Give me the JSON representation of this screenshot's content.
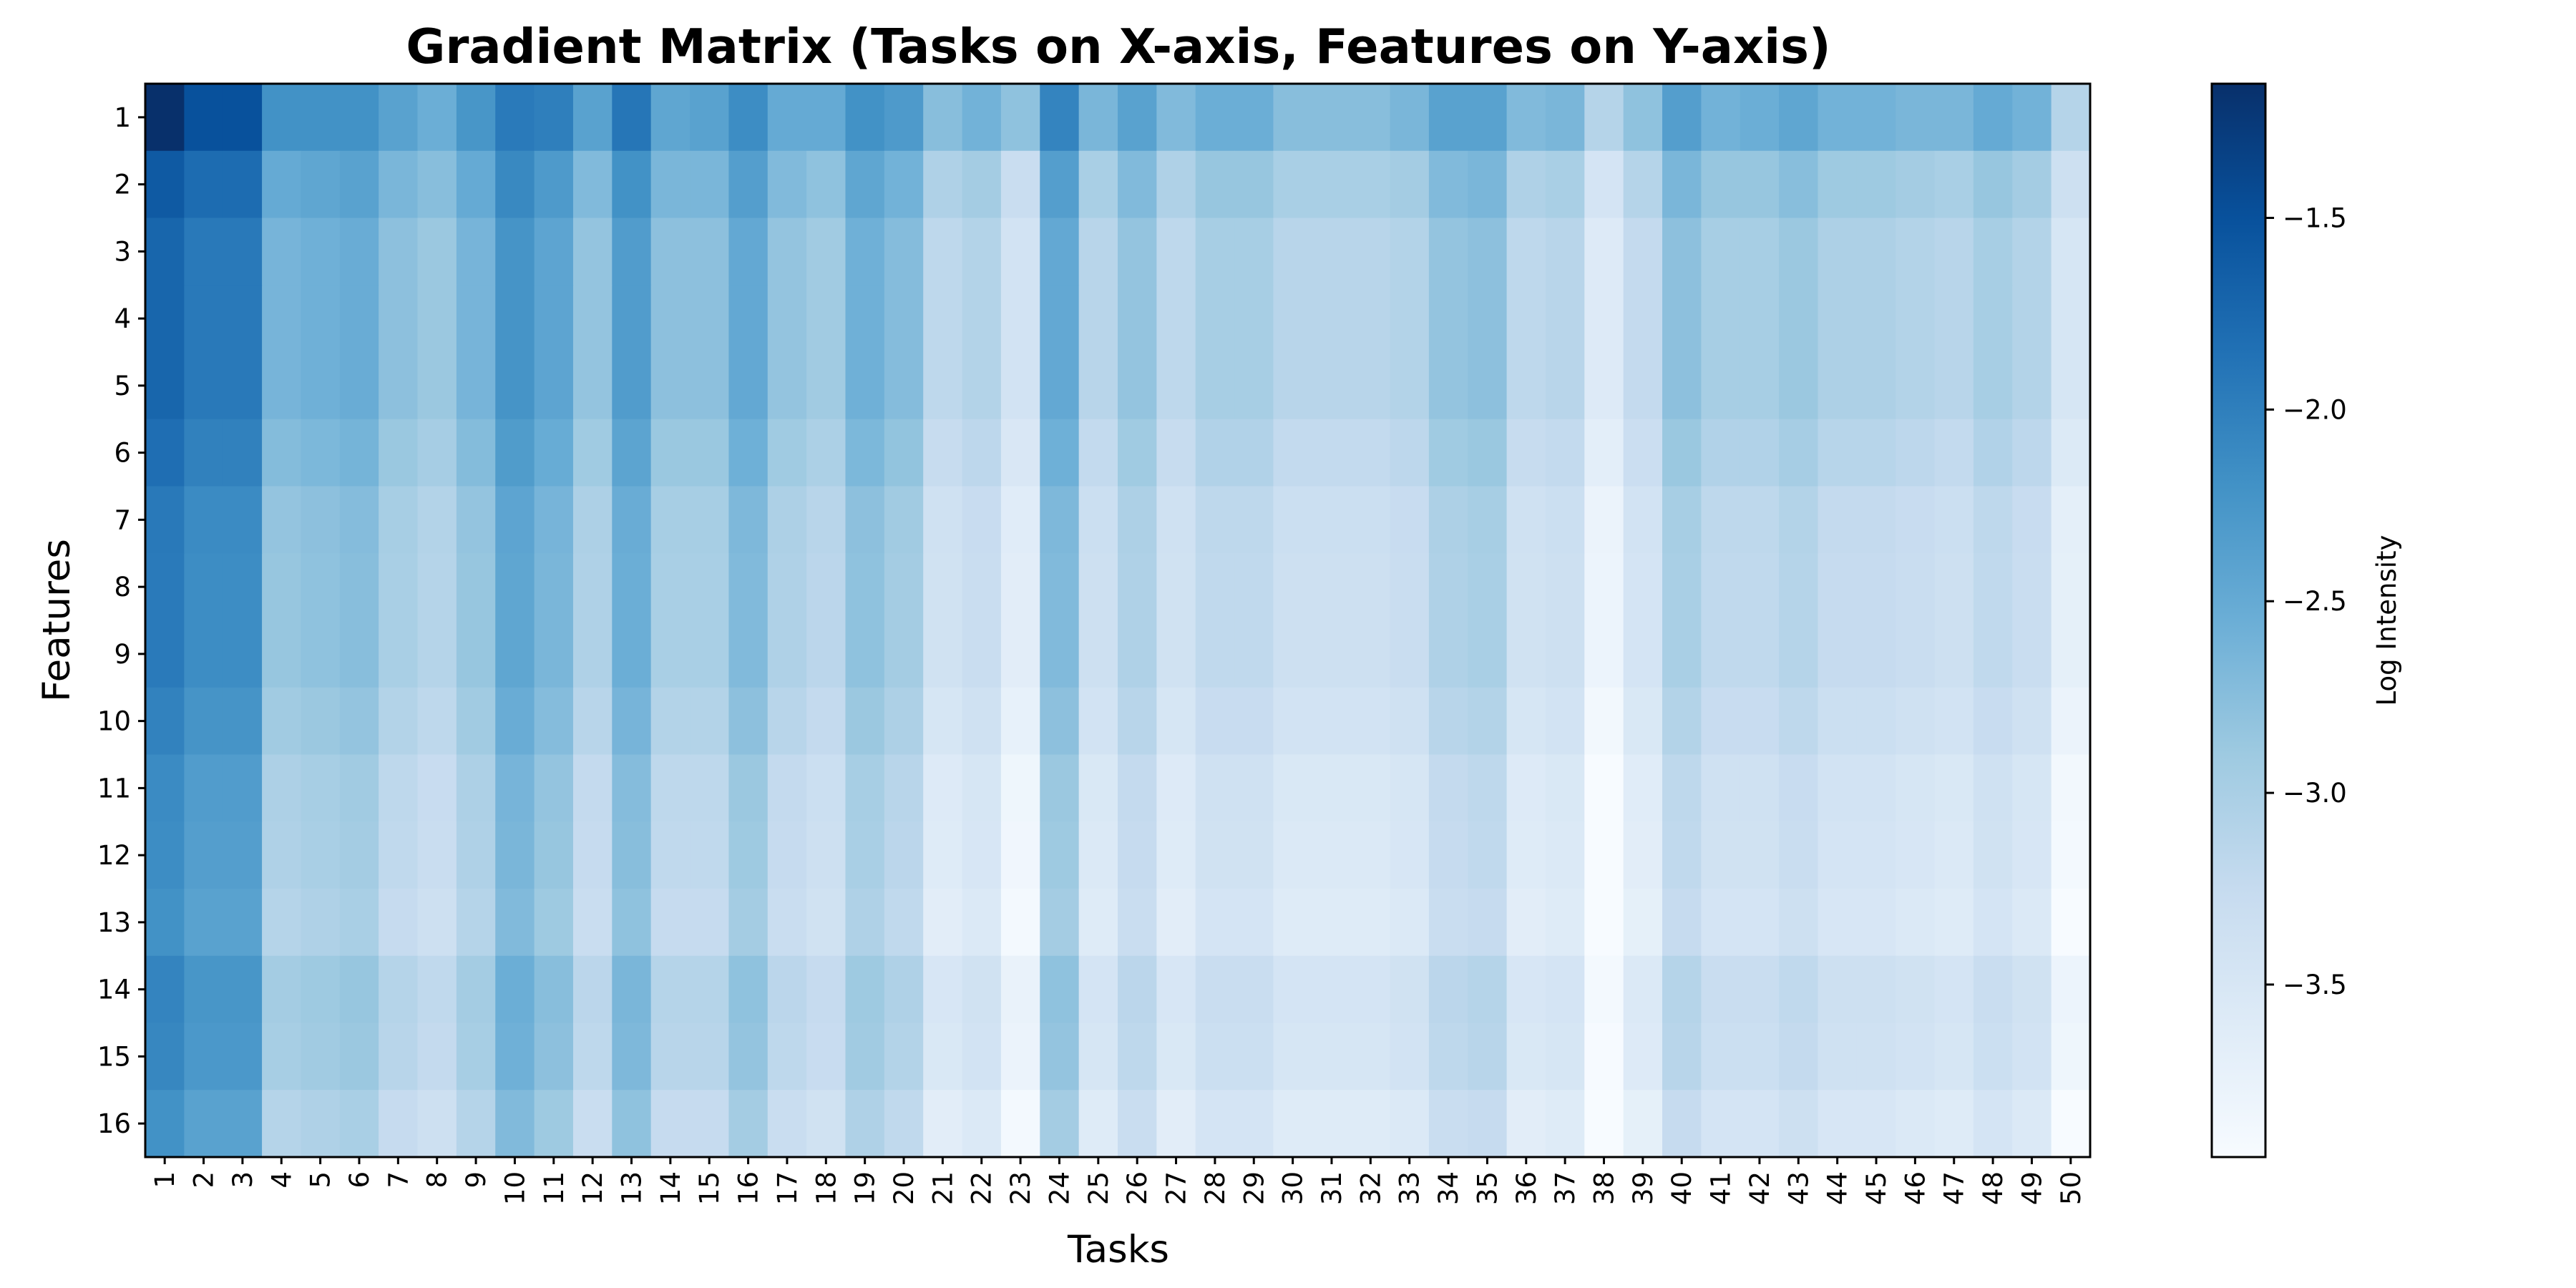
{
  "chart_data": {
    "type": "heatmap",
    "title": "Gradient Matrix (Tasks on X-axis, Features on Y-axis)",
    "xlabel": "Tasks",
    "ylabel": "Features",
    "x_categories": [
      "1",
      "2",
      "3",
      "4",
      "5",
      "6",
      "7",
      "8",
      "9",
      "10",
      "11",
      "12",
      "13",
      "14",
      "15",
      "16",
      "17",
      "18",
      "19",
      "20",
      "21",
      "22",
      "23",
      "24",
      "25",
      "26",
      "27",
      "28",
      "29",
      "30",
      "31",
      "32",
      "33",
      "34",
      "35",
      "36",
      "37",
      "38",
      "39",
      "40",
      "41",
      "42",
      "43",
      "44",
      "45",
      "46",
      "47",
      "48",
      "49",
      "50"
    ],
    "y_categories": [
      "1",
      "2",
      "3",
      "4",
      "5",
      "6",
      "7",
      "8",
      "9",
      "10",
      "11",
      "12",
      "13",
      "14",
      "15",
      "16"
    ],
    "colormap": "Blues",
    "colorbar": {
      "label": "Log Intensity",
      "range": [
        -3.95,
        -1.15
      ],
      "ticks": [
        -1.5,
        -2.0,
        -2.5,
        -3.0,
        -3.5
      ],
      "tick_labels": [
        "−1.5",
        "−2.0",
        "−2.5",
        "−3.0",
        "−3.5"
      ]
    },
    "column_base": [
      -1.6,
      -1.8,
      -1.8,
      -2.5,
      -2.45,
      -2.4,
      -2.65,
      -2.75,
      -2.5,
      -2.1,
      -2.3,
      -2.7,
      -2.2,
      -2.65,
      -2.65,
      -2.35,
      -2.7,
      -2.8,
      -2.45,
      -2.6,
      -3.05,
      -2.95,
      -3.3,
      -2.35,
      -3.0,
      -2.7,
      -3.05,
      -2.85,
      -2.85,
      -3.0,
      -3.0,
      -3.0,
      -2.95,
      -2.7,
      -2.65,
      -3.05,
      -3.0,
      -3.45,
      -3.1,
      -2.65,
      -2.85,
      -2.85,
      -2.75,
      -2.9,
      -2.9,
      -2.95,
      -3.0,
      -2.85,
      -2.95,
      -3.35
    ],
    "column_first_row": [
      -1.15,
      -1.5,
      -1.5,
      -2.2,
      -2.2,
      -2.2,
      -2.4,
      -2.55,
      -2.25,
      -1.95,
      -2.0,
      -2.4,
      -1.9,
      -2.45,
      -2.4,
      -2.15,
      -2.5,
      -2.5,
      -2.2,
      -2.3,
      -2.75,
      -2.6,
      -2.8,
      -2.05,
      -2.65,
      -2.4,
      -2.7,
      -2.55,
      -2.55,
      -2.75,
      -2.75,
      -2.75,
      -2.65,
      -2.4,
      -2.4,
      -2.7,
      -2.65,
      -3.1,
      -2.8,
      -2.35,
      -2.6,
      -2.55,
      -2.45,
      -2.6,
      -2.6,
      -2.65,
      -2.65,
      -2.5,
      -2.6,
      -3.1
    ],
    "row_offsets": [
      0,
      0,
      -0.13,
      -0.13,
      -0.13,
      -0.22,
      -0.33,
      -0.35,
      -0.35,
      -0.43,
      -0.53,
      -0.55,
      -0.6,
      -0.45,
      -0.48,
      -0.6
    ]
  }
}
